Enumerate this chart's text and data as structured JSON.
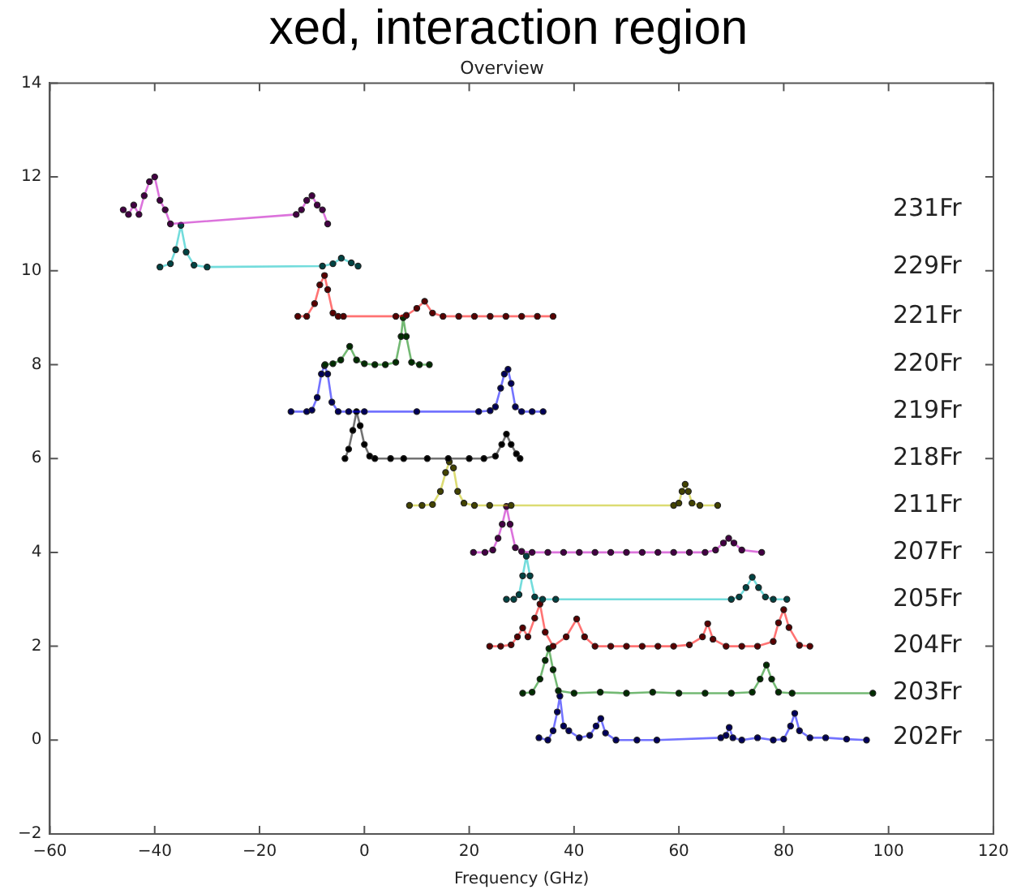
{
  "chart_data": {
    "type": "line",
    "title": "Overview",
    "xlabel": "Frequency (GHz)",
    "annotations": [
      "xed, interaction region"
    ],
    "xlim": [
      -60,
      120
    ],
    "ylim": [
      -2,
      14
    ],
    "xticks": [
      {
        "value": -60,
        "label": "−60"
      },
      {
        "value": -40,
        "label": "−40"
      },
      {
        "value": -20,
        "label": "−20"
      },
      0,
      20,
      40,
      60,
      80,
      100,
      120
    ],
    "yticks": [
      {
        "value": -2,
        "label": "−2"
      },
      0,
      2,
      4,
      6,
      8,
      10,
      12,
      14
    ],
    "grid": false,
    "legend": false,
    "marker": "circle",
    "line_style": "solid",
    "series": [
      {
        "name": "231Fr",
        "color": "#bf00bf",
        "x": [
          -46,
          -45,
          -44,
          -43,
          -42,
          -41,
          -40,
          -39,
          -38,
          -37,
          -13,
          -12,
          -11,
          -10,
          -9,
          -8,
          -7
        ],
        "values": [
          11.3,
          11.2,
          11.4,
          11.2,
          11.6,
          11.9,
          12.0,
          11.5,
          11.3,
          11.0,
          11.2,
          11.3,
          11.5,
          11.6,
          11.4,
          11.3,
          11.0
        ]
      },
      {
        "name": "229Fr",
        "color": "#00bfbf",
        "x": [
          -39,
          -37,
          -36,
          -35,
          -34,
          -32.5,
          -30,
          -8,
          -6,
          -4.4,
          -2.5,
          -1.2
        ],
        "values": [
          10.08,
          10.15,
          10.45,
          10.97,
          10.4,
          10.12,
          10.08,
          10.1,
          10.15,
          10.27,
          10.17,
          10.1
        ]
      },
      {
        "name": "221Fr",
        "color": "#ff0000",
        "x": [
          -12.7,
          -11,
          -9.5,
          -8.5,
          -7.6,
          -7,
          -6,
          -5,
          -4,
          6,
          8,
          10,
          11.5,
          13,
          15,
          18,
          21,
          24,
          27,
          30,
          33,
          36
        ],
        "values": [
          9.03,
          9.03,
          9.3,
          9.7,
          9.9,
          9.6,
          9.1,
          9.03,
          9.03,
          9.03,
          9.05,
          9.2,
          9.35,
          9.1,
          9.03,
          9.03,
          9.03,
          9.03,
          9.03,
          9.03,
          9.03,
          9.03
        ]
      },
      {
        "name": "220Fr",
        "color": "#008000",
        "x": [
          -7.5,
          -6,
          -4.5,
          -2.8,
          -1.5,
          0,
          2,
          4,
          6,
          7,
          7.4,
          8,
          9,
          10.5,
          12.4
        ],
        "values": [
          8,
          8.02,
          8.1,
          8.39,
          8.1,
          8.02,
          8,
          8,
          8.05,
          8.6,
          9.0,
          8.6,
          8.05,
          8,
          8
        ]
      },
      {
        "name": "219Fr",
        "color": "#0000ff",
        "x": [
          -14,
          -11,
          -10,
          -9,
          -8.2,
          -7.6,
          -7,
          -6.2,
          -5,
          -3,
          0,
          10,
          21.8,
          24,
          25,
          26,
          26.7,
          27.4,
          28,
          28.8,
          30,
          32,
          34.1
        ],
        "values": [
          7,
          7,
          7.03,
          7.3,
          7.8,
          7.98,
          7.8,
          7.2,
          7,
          7,
          7,
          7,
          7,
          7.02,
          7.1,
          7.5,
          7.8,
          7.9,
          7.6,
          7.1,
          7,
          7,
          7
        ]
      },
      {
        "name": "218Fr",
        "color": "#000000",
        "x": [
          -3.7,
          -3,
          -2.2,
          -1.5,
          -0.8,
          0,
          1,
          2,
          5,
          7.5,
          12,
          16,
          20,
          22.8,
          25,
          26.2,
          27.1,
          28,
          29,
          29.7
        ],
        "values": [
          6,
          6.2,
          6.6,
          7.0,
          6.7,
          6.3,
          6.05,
          6,
          6,
          6,
          6,
          6,
          6,
          6,
          6.05,
          6.3,
          6.52,
          6.3,
          6.1,
          6
        ]
      },
      {
        "name": "211Fr",
        "color": "#bfbf00",
        "x": [
          8.6,
          11,
          13,
          14.5,
          15.5,
          16.2,
          17,
          17.8,
          19,
          21,
          23.9,
          28,
          59,
          60,
          60.6,
          61.2,
          61.8,
          62.5,
          64,
          67.4
        ],
        "values": [
          5,
          5,
          5.02,
          5.3,
          5.7,
          5.93,
          5.8,
          5.3,
          5.05,
          5,
          5,
          5,
          5,
          5.05,
          5.3,
          5.45,
          5.3,
          5.05,
          5,
          5
        ]
      },
      {
        "name": "207Fr",
        "color": "#bf00bf",
        "x": [
          20.8,
          23,
          24.5,
          25.5,
          26.3,
          27.1,
          27.8,
          28.8,
          30,
          32,
          35,
          38,
          41,
          44,
          47,
          50,
          53,
          56,
          59,
          62,
          65,
          67,
          68.5,
          69.5,
          70.5,
          72,
          75.8
        ],
        "values": [
          4,
          4,
          4.05,
          4.3,
          4.6,
          4.98,
          4.6,
          4.1,
          4.02,
          4,
          4,
          4,
          4,
          4,
          4,
          4,
          4,
          4,
          4,
          4,
          4,
          4.05,
          4.2,
          4.3,
          4.2,
          4.05,
          4
        ]
      },
      {
        "name": "205Fr",
        "color": "#00bfbf",
        "x": [
          27.1,
          28.5,
          29.5,
          30.2,
          30.9,
          31.6,
          32.5,
          34,
          36.5,
          70,
          71.5,
          72.8,
          74,
          75.2,
          76.5,
          78,
          80.6
        ],
        "values": [
          3,
          3,
          3.1,
          3.5,
          3.92,
          3.5,
          3.05,
          3,
          3,
          3,
          3.05,
          3.25,
          3.47,
          3.25,
          3.05,
          3,
          3
        ]
      },
      {
        "name": "204Fr",
        "color": "#ff0000",
        "x": [
          23.9,
          26,
          28,
          29.2,
          30.2,
          31.2,
          32.5,
          33.5,
          34.5,
          36,
          38.5,
          40.5,
          42,
          44,
          47,
          50,
          53,
          56,
          59,
          62,
          64.5,
          65.5,
          66.5,
          69,
          72,
          75,
          78,
          79,
          80,
          81,
          83,
          85
        ],
        "values": [
          2,
          2,
          2.03,
          2.2,
          2.39,
          2.2,
          2.6,
          2.9,
          2.3,
          2,
          2.2,
          2.58,
          2.2,
          2,
          2,
          2,
          2,
          2,
          2,
          2.03,
          2.2,
          2.48,
          2.15,
          2,
          2,
          2,
          2.1,
          2.5,
          2.78,
          2.4,
          2.02,
          2
        ]
      },
      {
        "name": "203Fr",
        "color": "#008000",
        "x": [
          30.2,
          32,
          33.5,
          34.5,
          35.2,
          36,
          37,
          40,
          45,
          50,
          55,
          60,
          65,
          70,
          74,
          75.5,
          76.7,
          77.7,
          79,
          81.6,
          97
        ],
        "values": [
          1,
          1.02,
          1.3,
          1.7,
          1.95,
          1.5,
          1.05,
          1,
          1.02,
          1,
          1.02,
          1,
          1,
          1,
          1.02,
          1.3,
          1.6,
          1.3,
          1.02,
          1,
          1
        ]
      },
      {
        "name": "202Fr",
        "color": "#0000ff",
        "x": [
          33.3,
          35,
          36,
          36.8,
          37.3,
          38,
          39,
          41,
          43,
          44.2,
          45.1,
          46,
          48,
          52,
          55.8,
          68,
          69,
          69.6,
          70.3,
          72,
          75,
          78,
          80,
          81.3,
          82.1,
          83,
          85,
          88,
          92,
          95.8
        ],
        "values": [
          0.05,
          0,
          0.2,
          0.6,
          0.94,
          0.3,
          0.2,
          0.05,
          0.1,
          0.3,
          0.46,
          0.15,
          0,
          0,
          0,
          0.05,
          0.1,
          0.27,
          0.05,
          0,
          0.05,
          0,
          0.02,
          0.3,
          0.57,
          0.2,
          0.05,
          0.05,
          0.02,
          0
        ]
      }
    ]
  }
}
